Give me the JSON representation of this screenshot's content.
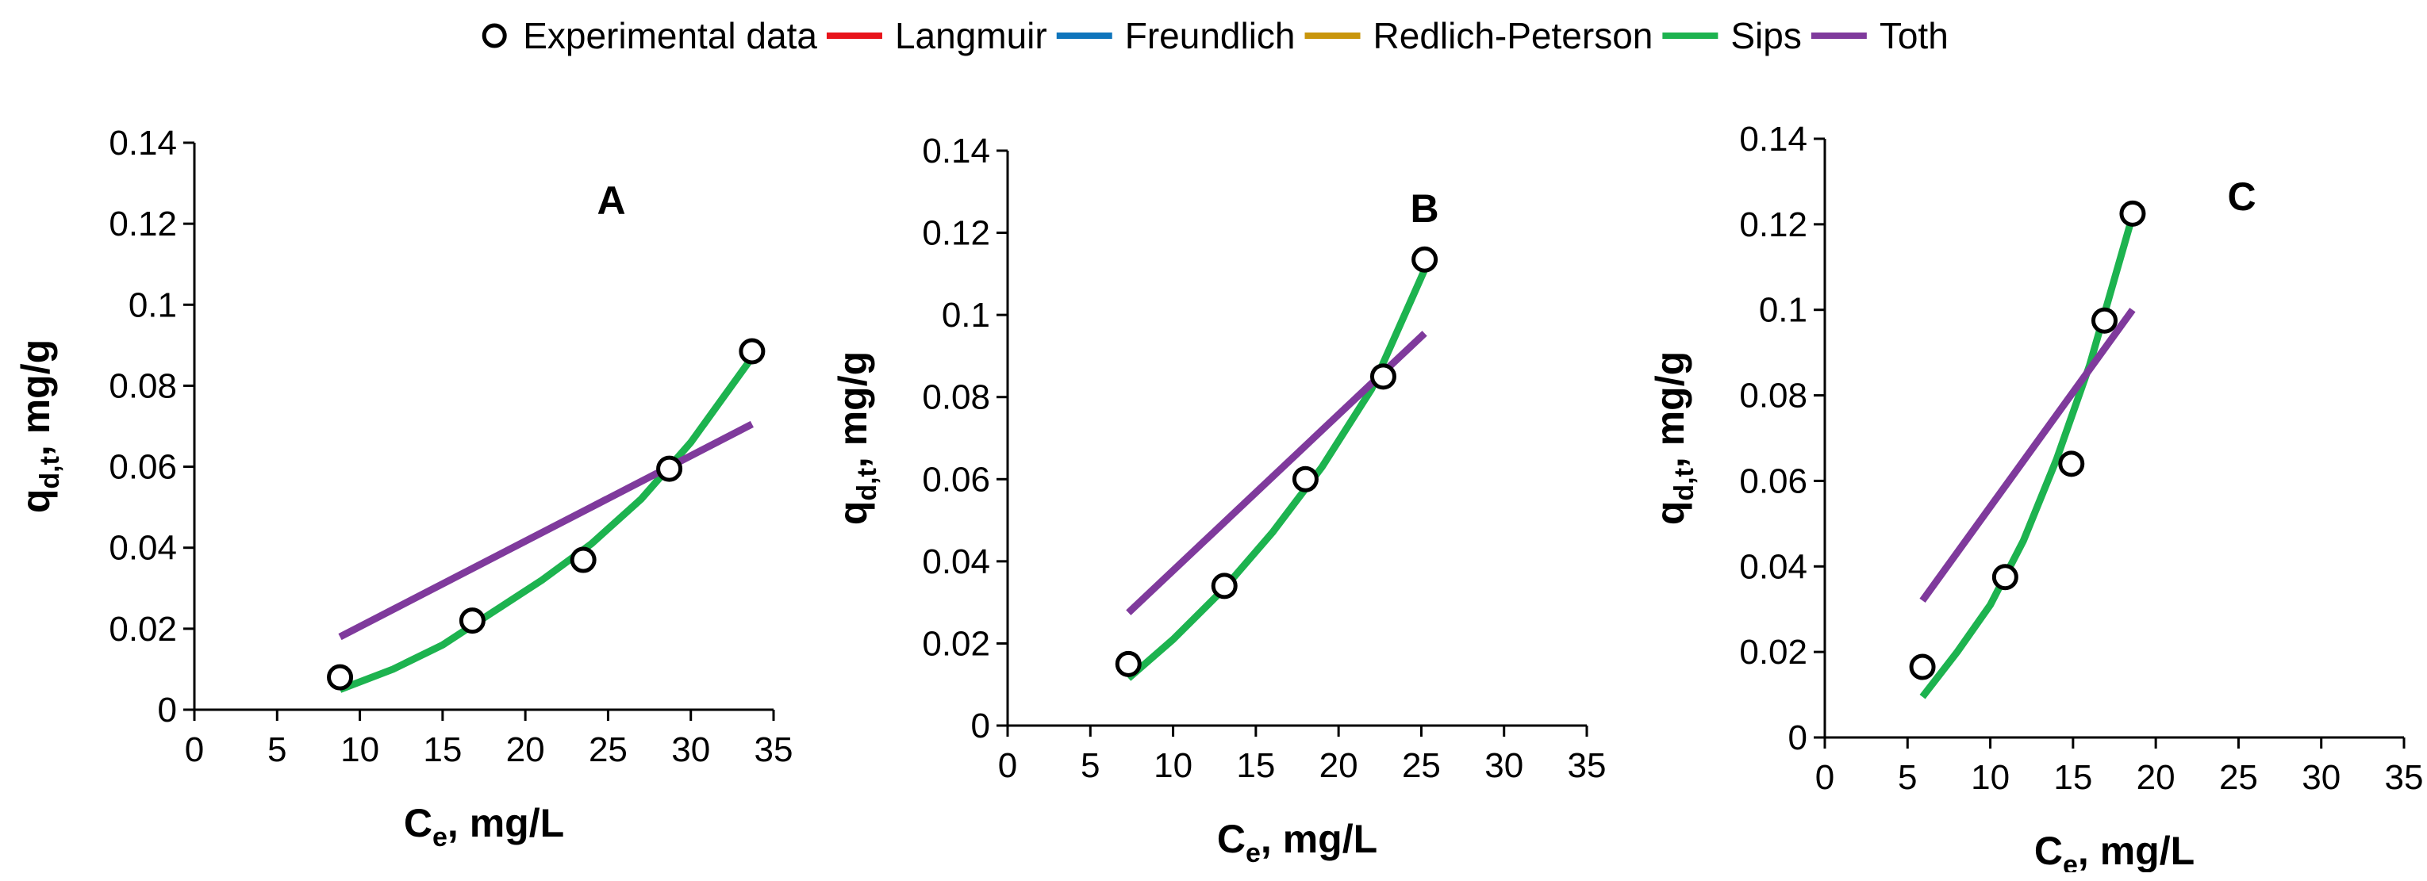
{
  "legend": {
    "items": [
      {
        "label": "Experimental data",
        "kind": "marker",
        "color": "#000000"
      },
      {
        "label": "Langmuir",
        "kind": "line",
        "color": "#e8141b"
      },
      {
        "label": "Freundlich",
        "kind": "line",
        "color": "#0f75bc"
      },
      {
        "label": "Redlich-Peterson",
        "kind": "line",
        "color": "#c9960c"
      },
      {
        "label": "Sips",
        "kind": "line",
        "color": "#1db34f"
      },
      {
        "label": "Toth",
        "kind": "line",
        "color": "#7f3a9c"
      }
    ]
  },
  "chart_data": [
    {
      "type": "scatter",
      "panel_label": "A",
      "xlabel": "C",
      "xlabel_sub": "e",
      "xlabel_unit": ", mg/L",
      "ylabel": "q",
      "ylabel_sub": "d,t",
      "ylabel_unit": ", mg/g",
      "xlim": [
        0,
        35
      ],
      "ylim": [
        0,
        0.14
      ],
      "x_ticks": [
        "0",
        "5",
        "10",
        "15",
        "20",
        "25",
        "30",
        "35"
      ],
      "y_ticks": [
        "0",
        "0.02",
        "0.04",
        "0.06",
        "0.08",
        "0.1",
        "0.12",
        "0.14"
      ],
      "series": [
        {
          "name": "Experimental data",
          "kind": "marker",
          "color": "#000000",
          "x": [
            8.8,
            16.8,
            23.5,
            28.7,
            33.7
          ],
          "y": [
            0.008,
            0.022,
            0.037,
            0.0595,
            0.0885
          ]
        },
        {
          "name": "Sips",
          "kind": "line",
          "color": "#1db34f",
          "x": [
            8.8,
            12,
            15,
            18,
            21,
            24,
            27,
            30,
            33.7
          ],
          "y": [
            0.005,
            0.01,
            0.016,
            0.024,
            0.032,
            0.041,
            0.052,
            0.066,
            0.087
          ]
        },
        {
          "name": "Toth",
          "kind": "line",
          "color": "#7f3a9c",
          "x": [
            8.8,
            33.7
          ],
          "y": [
            0.018,
            0.0705
          ]
        }
      ]
    },
    {
      "type": "scatter",
      "panel_label": "B",
      "xlabel": "C",
      "xlabel_sub": "e",
      "xlabel_unit": ", mg/L",
      "ylabel": "q",
      "ylabel_sub": "d,t",
      "ylabel_unit": ", mg/g",
      "xlim": [
        0,
        35
      ],
      "ylim": [
        0,
        0.14
      ],
      "x_ticks": [
        "0",
        "5",
        "10",
        "15",
        "20",
        "25",
        "30",
        "35"
      ],
      "y_ticks": [
        "0",
        "0.02",
        "0.04",
        "0.06",
        "0.08",
        "0.1",
        "0.12",
        "0.14"
      ],
      "series": [
        {
          "name": "Experimental data",
          "kind": "marker",
          "color": "#000000",
          "x": [
            7.3,
            13.1,
            18.0,
            22.7,
            25.2
          ],
          "y": [
            0.015,
            0.034,
            0.06,
            0.085,
            0.1135
          ]
        },
        {
          "name": "Sips",
          "kind": "line",
          "color": "#1db34f",
          "x": [
            7.3,
            10,
            13,
            16,
            19,
            22,
            25.2
          ],
          "y": [
            0.0115,
            0.021,
            0.033,
            0.047,
            0.063,
            0.082,
            0.111
          ]
        },
        {
          "name": "Toth",
          "kind": "line",
          "color": "#7f3a9c",
          "x": [
            7.3,
            25.2
          ],
          "y": [
            0.0275,
            0.0955
          ]
        }
      ]
    },
    {
      "type": "scatter",
      "panel_label": "C",
      "xlabel": "C",
      "xlabel_sub": "e",
      "xlabel_unit": ", mg/L",
      "ylabel": "q",
      "ylabel_sub": "d,t",
      "ylabel_unit": ", mg/g",
      "xlim": [
        0,
        35
      ],
      "ylim": [
        0,
        0.14
      ],
      "x_ticks": [
        "0",
        "5",
        "10",
        "15",
        "20",
        "25",
        "30",
        "35"
      ],
      "y_ticks": [
        "0",
        "0.02",
        "0.04",
        "0.06",
        "0.08",
        "0.1",
        "0.12",
        "0.14"
      ],
      "series": [
        {
          "name": "Experimental data",
          "kind": "marker",
          "color": "#000000",
          "x": [
            5.9,
            10.9,
            14.9,
            16.9,
            18.6
          ],
          "y": [
            0.0165,
            0.0375,
            0.064,
            0.0975,
            0.1225
          ]
        },
        {
          "name": "Sips",
          "kind": "line",
          "color": "#1db34f",
          "x": [
            5.9,
            8,
            10,
            12,
            14,
            16,
            18.6
          ],
          "y": [
            0.0095,
            0.02,
            0.031,
            0.046,
            0.065,
            0.087,
            0.122
          ]
        },
        {
          "name": "Toth",
          "kind": "line",
          "color": "#7f3a9c",
          "x": [
            5.9,
            18.6
          ],
          "y": [
            0.032,
            0.1
          ]
        }
      ]
    }
  ]
}
